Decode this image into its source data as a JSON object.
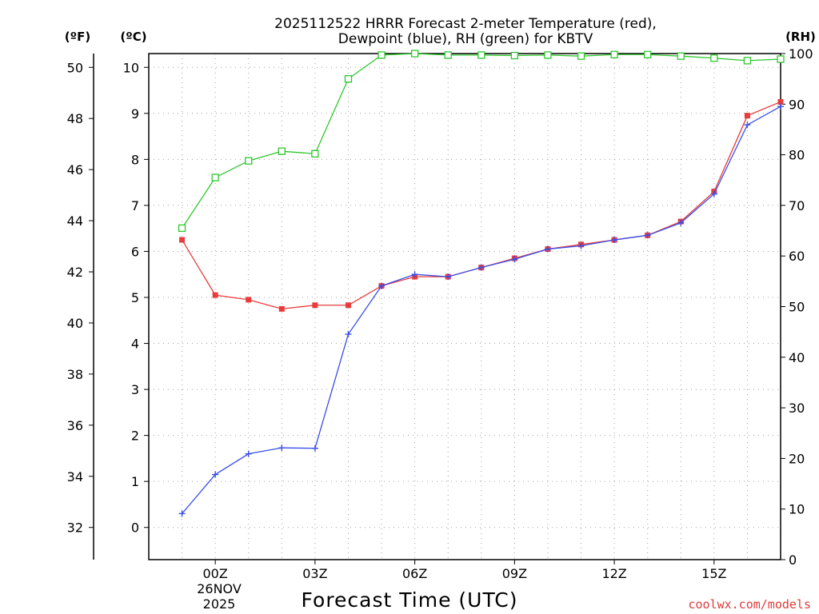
{
  "chart_data": {
    "type": "line",
    "title_line1": "2025112522 HRRR Forecast 2-meter Temperature (red),",
    "title_line2": "Dewpoint (blue), RH (green) for KBTV",
    "xlabel": "Forecast Time (UTC)",
    "x_hours": [
      -1,
      0,
      1,
      2,
      3,
      4,
      5,
      6,
      7,
      8,
      9,
      10,
      11,
      12,
      13,
      14,
      15,
      16,
      17,
      18
    ],
    "xlim": [
      -1,
      18
    ],
    "x_ticks": [
      {
        "hour": 1,
        "label": "00Z"
      },
      {
        "hour": 4,
        "label": "03Z"
      },
      {
        "hour": 7,
        "label": "06Z"
      },
      {
        "hour": 10,
        "label": "09Z"
      },
      {
        "hour": 13,
        "label": "12Z"
      },
      {
        "hour": 16,
        "label": "15Z"
      }
    ],
    "date_label_line1": "26NOV",
    "date_label_line2": "2025",
    "axes": {
      "celsius": {
        "unit_label": "(ºC)",
        "lim": [
          -0.7,
          10.3
        ],
        "ticks": [
          "0",
          "1",
          "2",
          "3",
          "4",
          "5",
          "6",
          "7",
          "8",
          "9",
          "10"
        ]
      },
      "fahrenheit": {
        "unit_label": "(ºF)",
        "ticks": [
          "32",
          "34",
          "36",
          "38",
          "40",
          "42",
          "44",
          "46",
          "48",
          "50"
        ]
      },
      "rh": {
        "unit_label": "(RH)",
        "lim": [
          0,
          100
        ],
        "ticks": [
          "0",
          "10",
          "20",
          "30",
          "40",
          "50",
          "60",
          "70",
          "80",
          "90",
          "100"
        ]
      }
    },
    "series": [
      {
        "name": "2-meter Temperature",
        "axis": "celsius",
        "color": "#e83c3c",
        "marker": "filled-square",
        "x": [
          0,
          1,
          2,
          3,
          4,
          5,
          6,
          7,
          8,
          9,
          10,
          11,
          12,
          13,
          14,
          15,
          16,
          17,
          18
        ],
        "values": [
          6.25,
          5.05,
          4.95,
          4.75,
          4.83,
          4.83,
          5.25,
          5.45,
          5.45,
          5.65,
          5.85,
          6.05,
          6.15,
          6.25,
          6.35,
          6.65,
          7.3,
          8.95,
          9.25
        ]
      },
      {
        "name": "Dewpoint",
        "axis": "celsius",
        "color": "#3a4fe8",
        "marker": "plus",
        "x": [
          0,
          1,
          2,
          3,
          4,
          5,
          6,
          7,
          8,
          9,
          10,
          11,
          12,
          13,
          14,
          15,
          16,
          17,
          18
        ],
        "values": [
          0.3,
          1.15,
          1.6,
          1.73,
          1.72,
          4.2,
          5.25,
          5.5,
          5.45,
          5.65,
          5.83,
          6.05,
          6.12,
          6.25,
          6.35,
          6.62,
          7.25,
          8.75,
          9.15
        ]
      },
      {
        "name": "RH",
        "axis": "rh",
        "color": "#2ec82e",
        "marker": "open-square",
        "x": [
          0,
          1,
          2,
          3,
          4,
          5,
          6,
          7,
          8,
          9,
          10,
          11,
          12,
          13,
          14,
          15,
          16,
          17,
          18
        ],
        "values": [
          65.5,
          75.5,
          78.8,
          80.7,
          80.2,
          95.0,
          99.7,
          100,
          99.7,
          99.7,
          99.6,
          99.7,
          99.5,
          99.8,
          99.8,
          99.5,
          99.1,
          98.6,
          98.9
        ]
      }
    ],
    "grid": true
  },
  "credit": "coolwx.com/models"
}
